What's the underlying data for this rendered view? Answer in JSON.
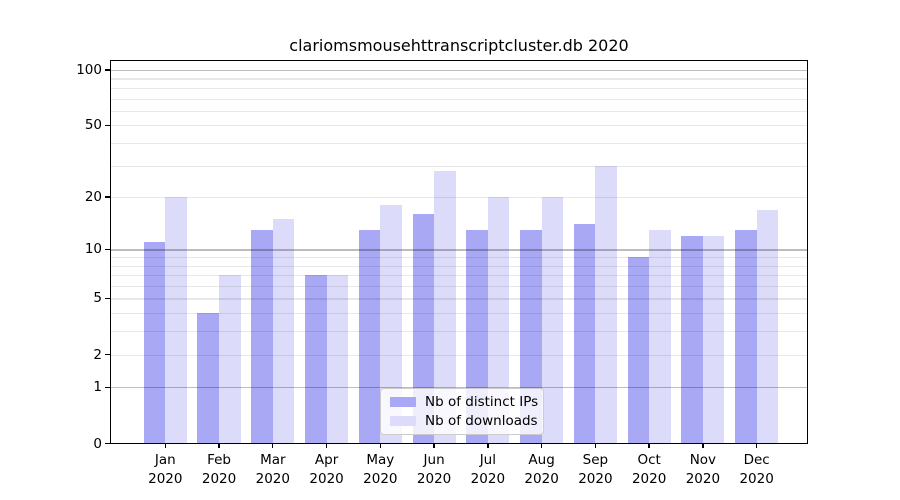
{
  "chart_data": {
    "type": "bar",
    "title": "clariomsmousehttranscriptcluster.db 2020",
    "categories": [
      "Jan",
      "Feb",
      "Mar",
      "Apr",
      "May",
      "Jun",
      "Jul",
      "Aug",
      "Sep",
      "Oct",
      "Nov",
      "Dec"
    ],
    "category_year": "2020",
    "series": [
      {
        "name": "Nb of distinct IPs",
        "color": "#a8a8f5",
        "values": [
          11,
          4,
          13,
          7,
          13,
          16,
          13,
          13,
          14,
          9,
          12,
          13
        ]
      },
      {
        "name": "Nb of downloads",
        "color": "#dcdcfa",
        "values": [
          20,
          7,
          15,
          7,
          18,
          28,
          20,
          20,
          30,
          13,
          12,
          17
        ]
      }
    ],
    "xlabel": "",
    "ylabel": "",
    "yscale": "log10(1+x)",
    "ylim": [
      0,
      113
    ],
    "yticks": [
      0,
      1,
      2,
      5,
      10,
      20,
      50,
      100
    ],
    "major_gridlines": [
      1,
      10,
      100
    ],
    "minor_gridlines": [
      2,
      3,
      4,
      5,
      6,
      7,
      8,
      9,
      20,
      30,
      40,
      50,
      60,
      70,
      80,
      90
    ],
    "grid": true,
    "legend_position": "lower center"
  }
}
